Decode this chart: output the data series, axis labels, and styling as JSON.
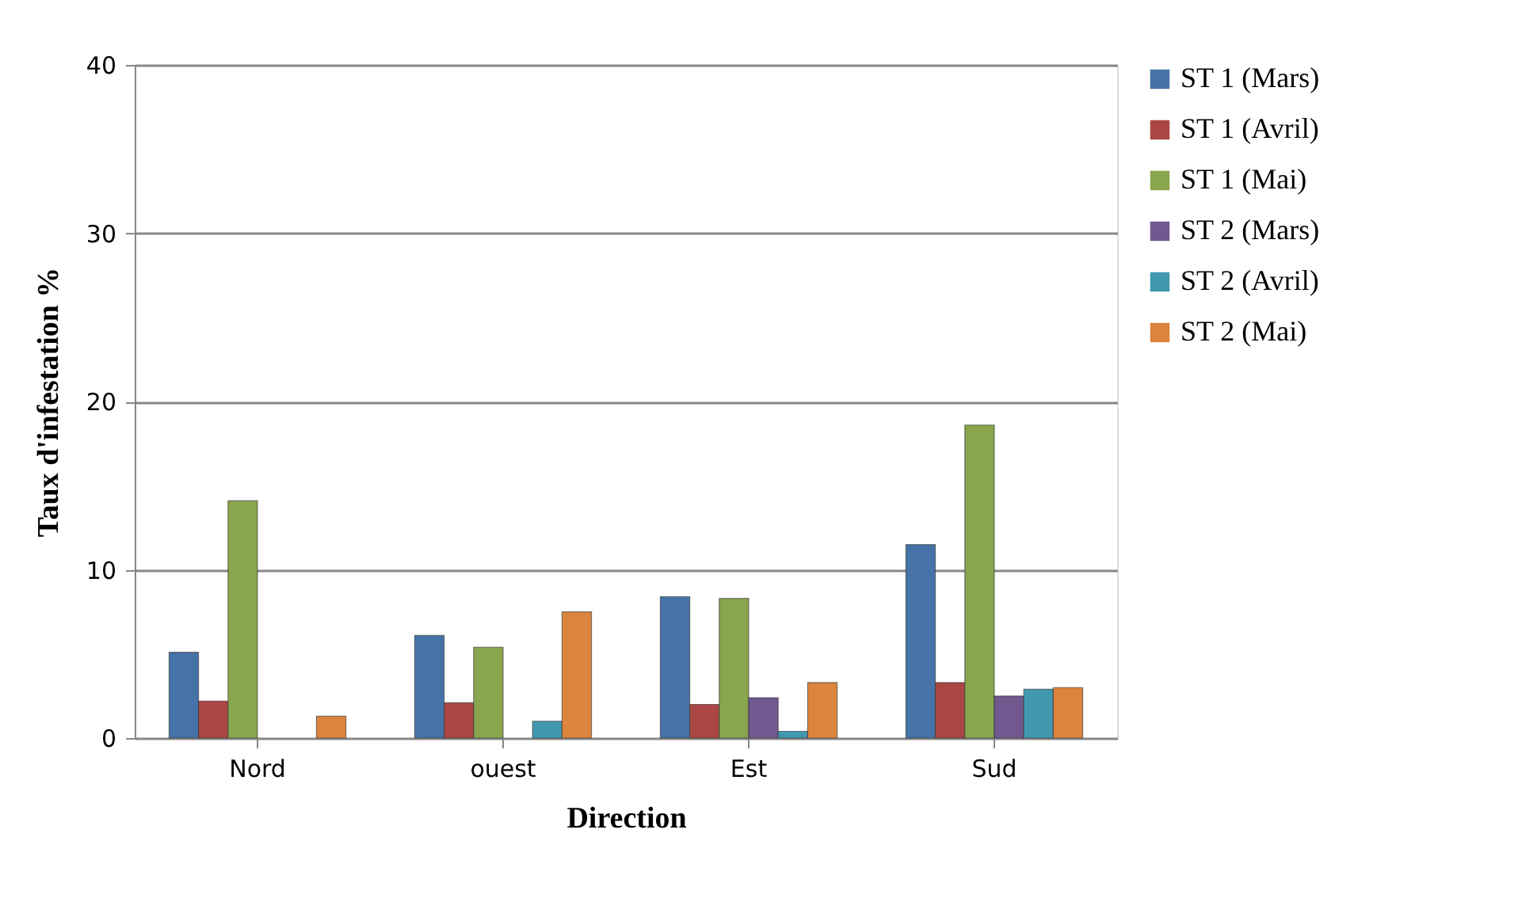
{
  "chart_data": {
    "type": "bar",
    "xlabel": "Direction",
    "ylabel": "Taux d'infestation %",
    "categories": [
      "Nord",
      "ouest",
      "Est",
      "Sud"
    ],
    "series": [
      {
        "name": "ST 1 (Mars)",
        "color": "#4572a7",
        "values": [
          5.1,
          6.1,
          8.4,
          11.5
        ]
      },
      {
        "name": "ST 1 (Avril)",
        "color": "#aa4643",
        "values": [
          2.2,
          2.1,
          2.0,
          3.3
        ]
      },
      {
        "name": "ST 1 (Mai)",
        "color": "#89a54e",
        "values": [
          14.1,
          5.4,
          8.3,
          18.6
        ]
      },
      {
        "name": "ST 2 (Mars)",
        "color": "#71588f",
        "values": [
          null,
          null,
          2.4,
          2.5
        ]
      },
      {
        "name": "ST 2 (Avril)",
        "color": "#4198af",
        "values": [
          null,
          1.0,
          0.4,
          2.9
        ]
      },
      {
        "name": "ST 2 (Mai)",
        "color": "#db843d",
        "values": [
          1.3,
          7.5,
          3.3,
          3.0
        ]
      }
    ],
    "ylim": [
      0,
      40
    ],
    "yticks": [
      0,
      10,
      20,
      30,
      40
    ],
    "grid": "y",
    "legend": "right"
  }
}
